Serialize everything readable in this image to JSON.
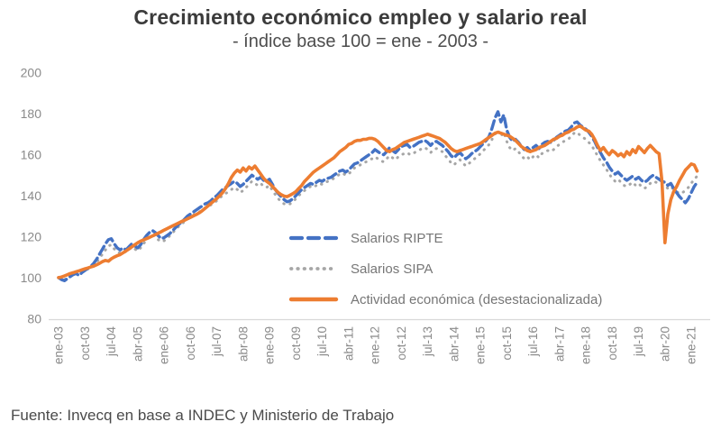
{
  "page": {
    "source_note": "Fuente: Invecq en base a INDEC y Ministerio de Trabajo"
  },
  "chart_data": {
    "type": "line",
    "title": "Crecimiento económico empleo y salario real",
    "subtitle": "- índice base 100 = ene - 2003 -",
    "grid": false,
    "legend_position": "inside-center-left",
    "axis_color": "#d9d9d9",
    "tick_label_color": "#8a8a8a",
    "x_axis": {
      "start": "2003-01",
      "frequency": "monthly",
      "tick_every": 9,
      "tick_labels": [
        "ene-03",
        "oct-03",
        "jul-04",
        "abr-05",
        "ene-06",
        "oct-06",
        "jul-07",
        "abr-08",
        "ene-09",
        "oct-09",
        "jul-10",
        "abr-11",
        "ene-12",
        "oct-12",
        "jul-13",
        "abr-14",
        "ene-15",
        "oct-15",
        "jul-16",
        "abr-17",
        "ene-18",
        "oct-18",
        "jul-19",
        "abr-20",
        "ene-21"
      ]
    },
    "y_axis": {
      "min": 80,
      "max": 200,
      "ticks": [
        200,
        180,
        160,
        140,
        120,
        100,
        80
      ]
    },
    "series": [
      {
        "id": "salarios-ripte",
        "name": "Salarios RIPTE",
        "color": "#4472c4",
        "line_style": "dashed",
        "values": [
          100.0,
          99.0,
          98.5,
          99.5,
          100.5,
          101.5,
          102.0,
          101.0,
          102.5,
          103.5,
          104.5,
          105.5,
          107.0,
          109.0,
          111.5,
          114.0,
          116.5,
          118.5,
          119.0,
          116.5,
          114.5,
          113.5,
          114.5,
          113.5,
          115.0,
          116.5,
          115.5,
          114.5,
          116.0,
          118.5,
          120.5,
          122.0,
          123.0,
          122.0,
          120.5,
          119.0,
          119.5,
          120.5,
          121.5,
          123.0,
          124.5,
          126.0,
          127.0,
          128.5,
          130.0,
          131.0,
          132.0,
          133.0,
          134.0,
          135.0,
          136.0,
          136.5,
          137.5,
          139.0,
          140.0,
          141.5,
          143.0,
          144.0,
          145.0,
          146.0,
          147.0,
          146.0,
          144.5,
          145.5,
          147.0,
          148.5,
          150.0,
          149.0,
          148.0,
          149.0,
          147.5,
          147.0,
          148.0,
          145.5,
          143.0,
          141.0,
          139.5,
          138.0,
          137.0,
          137.5,
          138.5,
          140.0,
          141.5,
          143.0,
          144.0,
          145.0,
          146.0,
          145.5,
          146.5,
          147.5,
          147.0,
          148.0,
          148.5,
          149.0,
          150.0,
          151.0,
          152.0,
          152.5,
          151.5,
          152.5,
          154.0,
          155.5,
          156.0,
          157.0,
          158.0,
          159.0,
          160.0,
          161.0,
          162.5,
          161.5,
          160.5,
          160.0,
          161.5,
          163.5,
          162.0,
          161.0,
          162.5,
          164.0,
          164.5,
          165.0,
          163.5,
          164.0,
          165.0,
          166.0,
          166.5,
          167.0,
          166.0,
          164.5,
          166.0,
          166.5,
          165.5,
          164.5,
          163.0,
          161.5,
          159.5,
          158.5,
          160.0,
          161.0,
          159.5,
          158.0,
          159.0,
          160.5,
          161.5,
          162.5,
          164.0,
          165.5,
          167.0,
          169.0,
          173.0,
          178.0,
          181.0,
          176.0,
          179.5,
          172.0,
          168.5,
          166.5,
          167.5,
          166.0,
          164.0,
          162.5,
          163.5,
          162.0,
          163.5,
          164.5,
          163.0,
          165.0,
          166.0,
          166.5,
          166.0,
          167.0,
          168.5,
          169.5,
          170.5,
          171.5,
          172.0,
          173.5,
          175.5,
          176.0,
          174.5,
          173.5,
          172.5,
          171.0,
          169.0,
          166.5,
          163.5,
          161.0,
          158.5,
          156.5,
          154.0,
          152.0,
          150.5,
          151.5,
          150.0,
          148.5,
          147.5,
          148.5,
          149.5,
          148.0,
          149.0,
          147.5,
          146.5,
          147.5,
          149.0,
          150.0,
          149.0,
          148.0,
          147.0,
          146.5,
          145.0,
          146.0,
          143.5,
          141.5,
          139.5,
          138.0,
          136.5,
          138.5,
          141.5,
          144.5,
          146.5
        ]
      },
      {
        "id": "salarios-sipa",
        "name": "Salarios SIPA",
        "color": "#a6a6a6",
        "line_style": "dotted",
        "values": [
          100.0,
          99.5,
          99.0,
          99.8,
          100.8,
          101.5,
          102.0,
          101.5,
          102.8,
          103.5,
          104.2,
          105.0,
          106.0,
          107.5,
          109.5,
          111.5,
          113.5,
          115.5,
          116.0,
          114.0,
          112.5,
          112.0,
          113.0,
          112.5,
          113.5,
          115.0,
          114.0,
          113.0,
          114.5,
          116.5,
          118.5,
          120.0,
          121.0,
          120.0,
          118.5,
          117.5,
          118.0,
          119.0,
          120.5,
          122.0,
          123.5,
          125.0,
          126.0,
          127.5,
          128.5,
          129.5,
          130.5,
          131.5,
          132.0,
          133.0,
          134.0,
          134.5,
          135.5,
          136.5,
          137.5,
          139.0,
          140.0,
          141.0,
          142.0,
          143.0,
          144.0,
          143.0,
          141.5,
          142.5,
          144.0,
          145.5,
          147.0,
          146.0,
          145.0,
          146.0,
          144.5,
          144.0,
          145.0,
          142.5,
          140.5,
          138.5,
          137.0,
          136.0,
          135.5,
          136.0,
          137.0,
          138.5,
          140.0,
          141.5,
          142.5,
          143.5,
          144.5,
          144.0,
          145.0,
          146.0,
          145.5,
          146.5,
          147.0,
          147.5,
          148.5,
          149.5,
          150.5,
          151.0,
          150.0,
          150.5,
          152.0,
          153.5,
          154.0,
          155.0,
          156.0,
          156.5,
          157.5,
          158.0,
          159.0,
          158.0,
          157.0,
          156.5,
          158.0,
          159.5,
          158.5,
          157.5,
          159.0,
          160.0,
          160.5,
          161.0,
          160.0,
          160.5,
          161.5,
          162.0,
          163.0,
          163.5,
          162.5,
          161.0,
          162.5,
          163.0,
          162.0,
          161.5,
          159.5,
          158.0,
          156.0,
          155.0,
          156.5,
          157.5,
          156.0,
          154.5,
          155.5,
          157.0,
          158.0,
          159.0,
          160.5,
          162.0,
          163.5,
          165.0,
          167.5,
          170.0,
          172.0,
          169.0,
          171.0,
          166.5,
          163.5,
          162.0,
          163.0,
          161.5,
          159.5,
          158.0,
          159.0,
          157.5,
          159.0,
          160.0,
          158.5,
          160.5,
          161.5,
          162.0,
          161.5,
          162.5,
          164.0,
          165.0,
          166.0,
          167.0,
          167.5,
          169.0,
          170.5,
          171.0,
          169.5,
          168.5,
          167.5,
          166.0,
          164.5,
          162.0,
          159.5,
          157.0,
          155.0,
          153.0,
          150.5,
          148.5,
          147.0,
          148.0,
          146.5,
          145.0,
          144.5,
          145.5,
          146.5,
          145.0,
          146.0,
          144.5,
          143.5,
          144.5,
          146.0,
          147.0,
          146.5,
          146.0,
          145.5,
          145.0,
          143.5,
          144.5,
          143.0,
          142.0,
          141.0,
          141.5,
          142.5,
          144.0,
          146.0,
          148.0,
          149.5
        ]
      },
      {
        "id": "actividad-economica",
        "name": "Actividad económica (desestacionalizada)",
        "color": "#ed7d31",
        "line_style": "solid",
        "values": [
          100.0,
          100.3,
          100.8,
          101.4,
          102.0,
          102.4,
          102.9,
          103.3,
          103.8,
          104.3,
          104.7,
          105.2,
          105.6,
          106.3,
          107.0,
          107.8,
          108.4,
          108.0,
          109.2,
          110.0,
          110.7,
          111.2,
          112.1,
          113.0,
          114.0,
          115.0,
          116.0,
          117.0,
          117.8,
          118.4,
          119.0,
          119.6,
          120.3,
          121.0,
          121.7,
          122.4,
          123.2,
          123.9,
          124.6,
          125.3,
          126.0,
          126.7,
          127.4,
          128.0,
          128.7,
          129.4,
          130.1,
          130.8,
          131.6,
          132.6,
          133.8,
          135.0,
          136.2,
          137.4,
          138.6,
          140.0,
          141.5,
          143.5,
          146.0,
          149.0,
          151.0,
          152.5,
          151.5,
          153.5,
          152.0,
          154.0,
          153.0,
          154.5,
          152.5,
          150.5,
          148.5,
          147.0,
          146.0,
          144.5,
          143.0,
          141.5,
          140.5,
          139.8,
          139.5,
          140.2,
          141.0,
          142.0,
          143.5,
          145.0,
          147.0,
          148.5,
          150.0,
          151.5,
          152.5,
          153.5,
          154.5,
          155.5,
          156.5,
          157.5,
          158.5,
          160.0,
          161.5,
          162.5,
          163.5,
          165.0,
          165.5,
          166.5,
          167.0,
          167.0,
          167.5,
          167.5,
          168.0,
          168.0,
          167.5,
          166.5,
          165.0,
          163.5,
          162.0,
          161.5,
          162.5,
          163.0,
          164.0,
          165.0,
          166.0,
          166.5,
          167.0,
          167.5,
          168.0,
          168.5,
          169.0,
          169.5,
          170.0,
          169.5,
          169.0,
          168.5,
          168.0,
          167.0,
          166.0,
          164.5,
          163.0,
          162.0,
          161.5,
          162.0,
          162.5,
          163.0,
          163.5,
          164.0,
          164.5,
          165.0,
          165.5,
          166.5,
          167.5,
          168.5,
          169.5,
          170.5,
          171.0,
          170.5,
          170.0,
          169.5,
          169.0,
          168.0,
          167.0,
          165.5,
          164.0,
          163.0,
          162.0,
          161.5,
          162.0,
          162.5,
          163.5,
          164.0,
          164.5,
          165.5,
          166.5,
          167.5,
          168.0,
          169.0,
          169.5,
          170.5,
          171.0,
          172.0,
          172.5,
          173.5,
          174.0,
          173.0,
          172.0,
          171.5,
          170.0,
          167.5,
          164.5,
          162.0,
          163.5,
          161.5,
          160.0,
          162.0,
          161.0,
          159.5,
          160.5,
          159.0,
          161.5,
          160.0,
          162.5,
          161.0,
          164.0,
          162.5,
          161.0,
          163.0,
          164.5,
          163.0,
          161.5,
          160.5,
          147.0,
          117.0,
          131.0,
          138.0,
          142.0,
          144.5,
          147.5,
          150.0,
          152.5,
          154.0,
          155.5,
          155.0,
          152.0
        ]
      }
    ]
  }
}
